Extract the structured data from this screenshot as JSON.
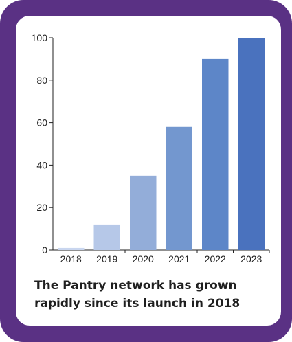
{
  "caption_lines": [
    "The Pantry network has grown",
    "rapidly since its launch in 2018"
  ],
  "colors": {
    "frame": "#5a3184",
    "card": "#ffffff",
    "axis": "#222222",
    "bars": [
      "#c9d6ef",
      "#b6c8e8",
      "#93add9",
      "#7397cf",
      "#5d86c8",
      "#4a72be"
    ]
  },
  "chart_data": {
    "type": "bar",
    "title": "The Pantry network has grown rapidly since its launch in 2018",
    "xlabel": "",
    "ylabel": "",
    "categories": [
      "2018",
      "2019",
      "2020",
      "2021",
      "2022",
      "2023"
    ],
    "values": [
      1,
      12,
      35,
      58,
      90,
      100
    ],
    "ylim": [
      0,
      100
    ],
    "yticks": [
      0,
      20,
      40,
      60,
      80,
      100
    ],
    "grid": false,
    "legend": "none"
  }
}
